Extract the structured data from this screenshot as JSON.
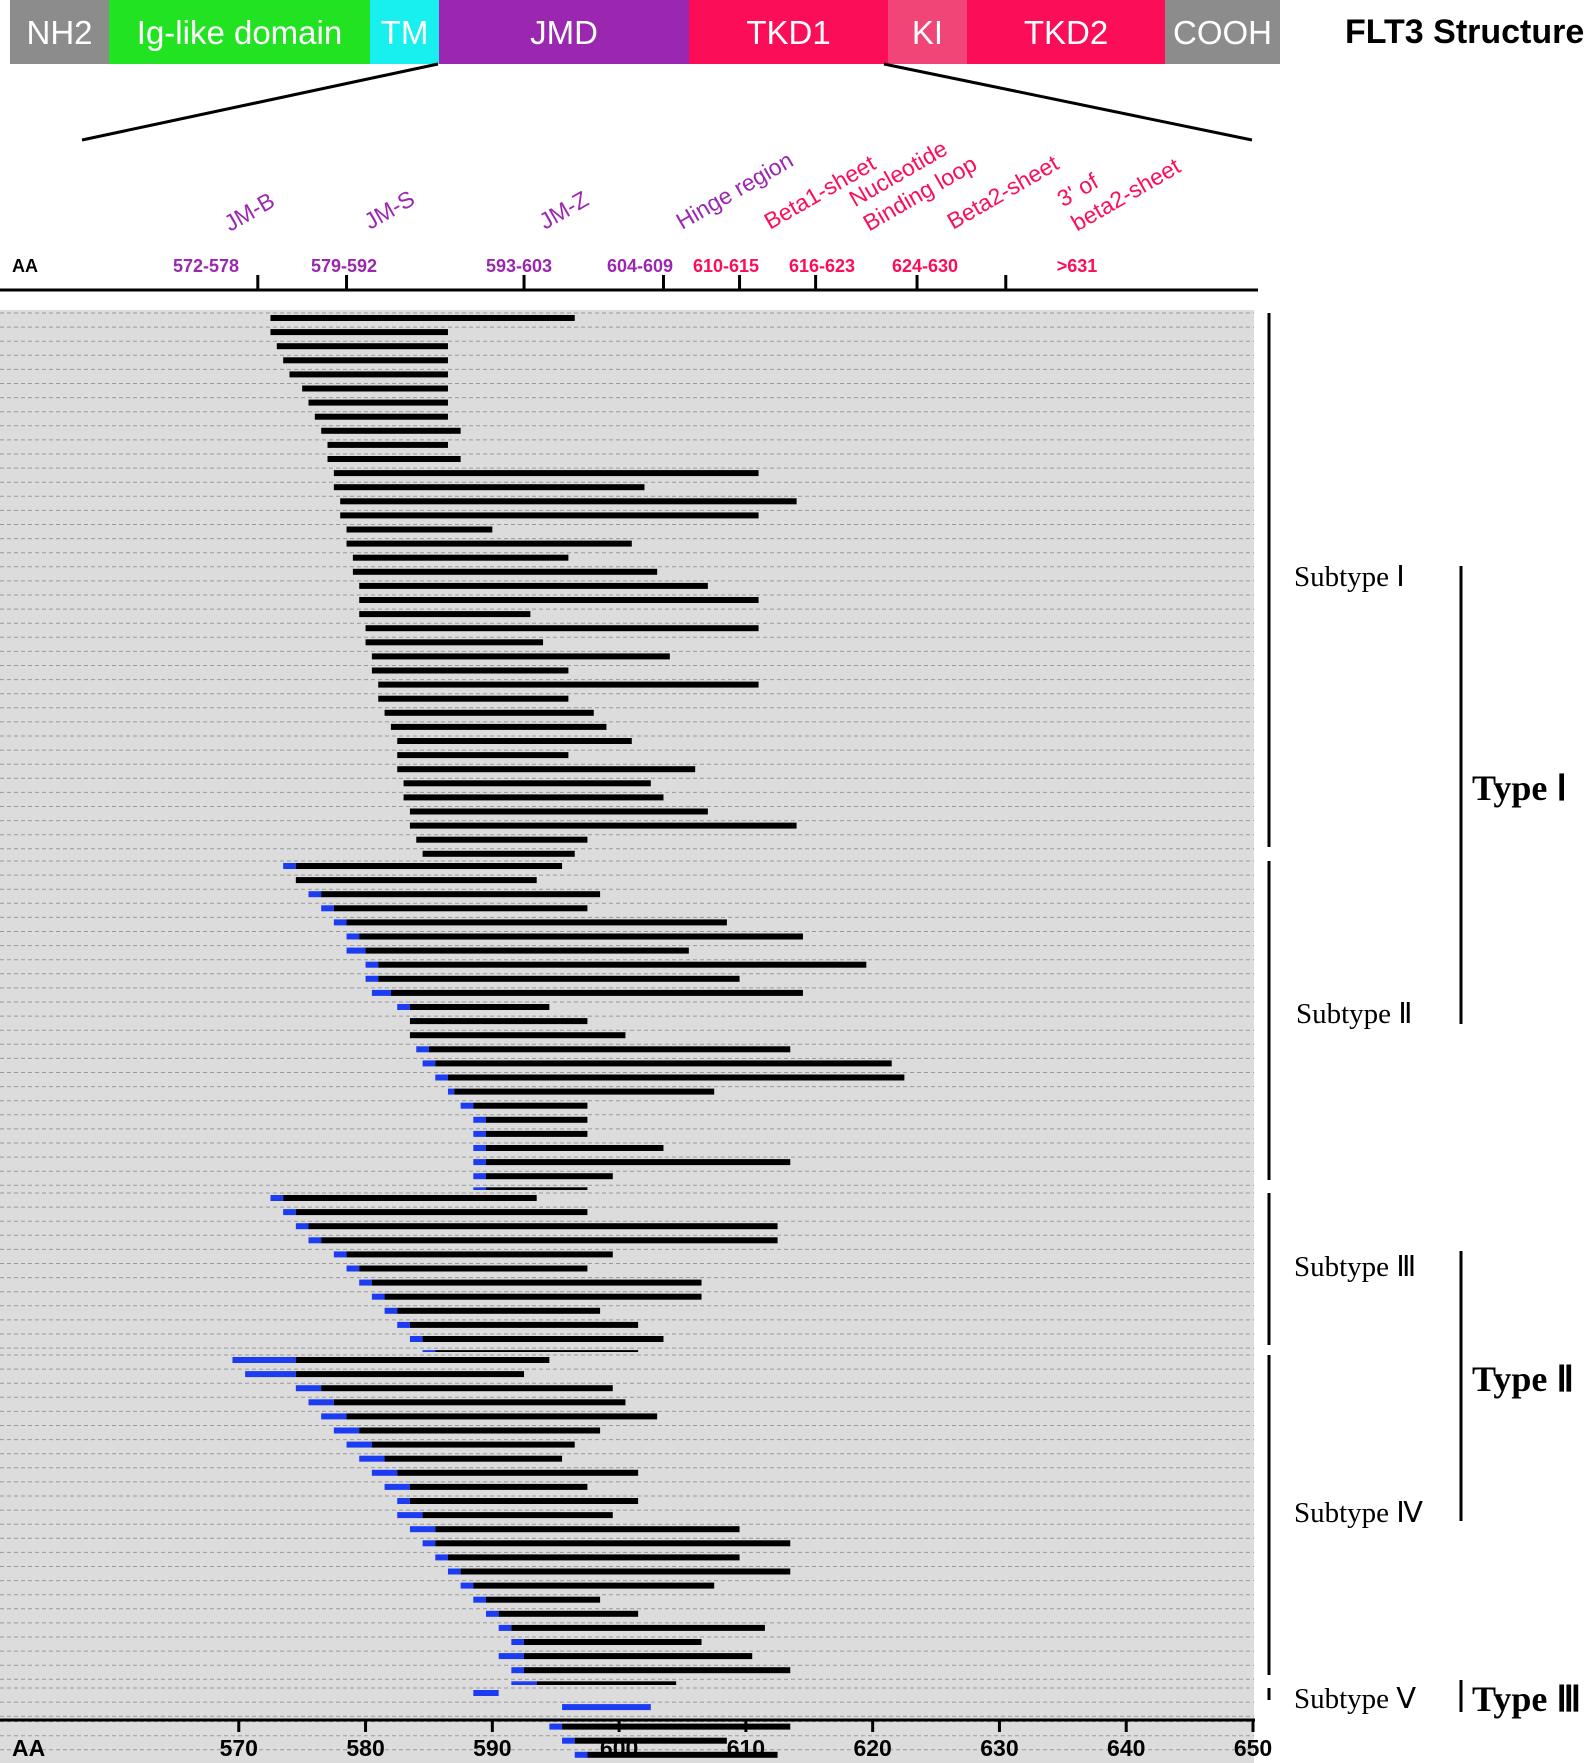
{
  "structure": {
    "title": "FLT3 Structure",
    "domains": [
      {
        "label": "NH2",
        "color": "#8c8c8c"
      },
      {
        "label": "Ig-like domain",
        "color": "#22e322"
      },
      {
        "label": "TM",
        "color": "#18f0f0"
      },
      {
        "label": "JMD",
        "color": "#9b27b0"
      },
      {
        "label": "TKD1",
        "color": "#fc0d58"
      },
      {
        "label": "KI",
        "color": "#f04576"
      },
      {
        "label": "TKD2",
        "color": "#fc0d58"
      },
      {
        "label": "COOH",
        "color": "#8c8c8c"
      }
    ]
  },
  "regions": {
    "axis_label": "AA",
    "items": [
      {
        "name": "JM-B",
        "range": "572-578",
        "color": "#9b27b0"
      },
      {
        "name": "JM-S",
        "range": "579-592",
        "color": "#9b27b0"
      },
      {
        "name": "JM-Z",
        "range": "593-603",
        "color": "#9b27b0"
      },
      {
        "name": "Hinge region",
        "range": "604-609",
        "color": "#9b27b0"
      },
      {
        "name": "Beta1-sheet",
        "range": "610-615",
        "color": "#fc0d58"
      },
      {
        "name": "Nucleotide Binding loop",
        "range": "616-623",
        "color": "#fc0d58"
      },
      {
        "name": "Beta2-sheet",
        "range": "624-630",
        "color": "#fc0d58"
      },
      {
        "name": "3' of beta2-sheet",
        "range": ">631",
        "color": "#fc0d58"
      }
    ],
    "boundaries_aa": [
      571.5,
      578.5,
      592.5,
      603.5,
      609.5,
      615.5,
      623.5,
      630.5
    ]
  },
  "groups": [
    {
      "label": "Subtype Ⅰ"
    },
    {
      "label": "Subtype Ⅱ"
    },
    {
      "label": "Subtype Ⅲ"
    },
    {
      "label": "Subtype Ⅳ"
    },
    {
      "label": "Subtype Ⅴ"
    }
  ],
  "types": [
    {
      "label": "Type Ⅰ"
    },
    {
      "label": "Type Ⅱ"
    },
    {
      "label": "Type Ⅲ"
    }
  ],
  "colors": {
    "insertion": "#000000",
    "partial": "#1c3cf2",
    "sequence_background": "#dcdcdc"
  },
  "chart_data": {
    "type": "bar",
    "orientation": "horizontal-range",
    "xlabel": "AA",
    "xlim": [
      560,
      650
    ],
    "xticks": [
      570,
      580,
      590,
      600,
      610,
      620,
      630,
      640,
      650
    ],
    "series": [
      {
        "name": "Subtype Ⅰ",
        "bars": [
          [
            572.5,
            596.5
          ],
          [
            572.5,
            586.5
          ],
          [
            573,
            586.5
          ],
          [
            573.5,
            586.5
          ],
          [
            574,
            586.5
          ],
          [
            575,
            586.5
          ],
          [
            575.5,
            586.5
          ],
          [
            576,
            586.5
          ],
          [
            576.5,
            587.5
          ],
          [
            577,
            586.5
          ],
          [
            577,
            587.5
          ],
          [
            577.5,
            611
          ],
          [
            577.5,
            602
          ],
          [
            578,
            614
          ],
          [
            578,
            611
          ],
          [
            578.5,
            590
          ],
          [
            578.5,
            601
          ],
          [
            579,
            596
          ],
          [
            579,
            603
          ],
          [
            579.5,
            607
          ],
          [
            579.5,
            611
          ],
          [
            579.5,
            593
          ],
          [
            580,
            611
          ],
          [
            580,
            594
          ],
          [
            580.5,
            604
          ],
          [
            580.5,
            596
          ],
          [
            581,
            611
          ],
          [
            581,
            596
          ],
          [
            581.5,
            598
          ],
          [
            582,
            599
          ],
          [
            582.5,
            601
          ],
          [
            582.5,
            596
          ],
          [
            582.5,
            606
          ],
          [
            583,
            602.5
          ],
          [
            583,
            603.5
          ],
          [
            583.5,
            607
          ],
          [
            583.5,
            614
          ],
          [
            584,
            597.5
          ],
          [
            584.5,
            596.5
          ],
          [
            585,
            598.5
          ],
          [
            585.5,
            607
          ],
          [
            585.5,
            596
          ],
          [
            586,
            611
          ],
          [
            586,
            595.5
          ],
          [
            586.5,
            601.5
          ],
          [
            586.5,
            600
          ],
          [
            586.5,
            602
          ],
          [
            587,
            599.5
          ],
          [
            587,
            609.5
          ],
          [
            588.5,
            612
          ],
          [
            589.5,
            610
          ],
          [
            589.5,
            609
          ],
          [
            590.5,
            613
          ],
          [
            590.5,
            612.5
          ],
          [
            591,
            609.5
          ],
          [
            592,
            598
          ],
          [
            592,
            613
          ],
          [
            592.5,
            601.5
          ],
          [
            592.5,
            603.5
          ],
          [
            592.5,
            607.5
          ],
          [
            592.5,
            601.5
          ],
          [
            592.5,
            613
          ],
          [
            593,
            604
          ],
          [
            593,
            613
          ],
          [
            593.5,
            600.5
          ],
          [
            593.5,
            602.5
          ],
          [
            593.5,
            603.5
          ],
          [
            594,
            599.5
          ],
          [
            594,
            614
          ],
          [
            594.5,
            601.5
          ],
          [
            594.5,
            611
          ],
          [
            594.5,
            601.5
          ],
          [
            595,
            601.5
          ],
          [
            595,
            614
          ],
          [
            595,
            606.5
          ],
          [
            595,
            609
          ],
          [
            595.5,
            614
          ],
          [
            595.5,
            612.5
          ],
          [
            595.5,
            613
          ],
          [
            595.5,
            607
          ],
          [
            596,
            599.5
          ],
          [
            596,
            598.5
          ],
          [
            596,
            605
          ],
          [
            596.5,
            601.5
          ],
          [
            596.5,
            608.5
          ],
          [
            596.5,
            614
          ],
          [
            597,
            602
          ],
          [
            597,
            626.5
          ],
          [
            597.5,
            601.5
          ],
          [
            597.5,
            603
          ],
          [
            598,
            605.5
          ],
          [
            598.5,
            606.5
          ],
          [
            598.5,
            605
          ],
          [
            599,
            606
          ],
          [
            599.5,
            605.5
          ],
          [
            600,
            613.5
          ],
          [
            601,
            613.5
          ],
          [
            602,
            613.5
          ],
          [
            603.5,
            613.5
          ]
        ]
      },
      {
        "name": "Subtype Ⅱ",
        "bars": [
          [
            573.5,
            595.5,
            574.5
          ],
          [
            574.5,
            593.5
          ],
          [
            575.5,
            598.5,
            576.5
          ],
          [
            576.5,
            597.5,
            577.5
          ],
          [
            577.5,
            608.5,
            578.5
          ],
          [
            578.5,
            614.5,
            579.5
          ],
          [
            578.5,
            605.5,
            580
          ],
          [
            580,
            619.5,
            581
          ],
          [
            580,
            609.5,
            581
          ],
          [
            580.5,
            614.5,
            582
          ],
          [
            582.5,
            594.5,
            583.5
          ],
          [
            583.5,
            597.5,
            583.5
          ],
          [
            583.5,
            600.5,
            583.5
          ],
          [
            584,
            613.5,
            585
          ],
          [
            584.5,
            621.5,
            585.5
          ],
          [
            585.5,
            622.5,
            586.5
          ],
          [
            586.5,
            607.5,
            587
          ],
          [
            587.5,
            597.5,
            588.5
          ],
          [
            588.5,
            597.5,
            589.5
          ],
          [
            588.5,
            597.5,
            589.5
          ],
          [
            588.5,
            603.5,
            589.5
          ],
          [
            588.5,
            613.5,
            589.5
          ],
          [
            588.5,
            599.5,
            589.5
          ],
          [
            588.5,
            597.5,
            589.5
          ],
          [
            585.5,
            614.5,
            589.5
          ],
          [
            589.5,
            601.5,
            590.5
          ],
          [
            589.5,
            597.5,
            590.5
          ],
          [
            590.5,
            602.5,
            591.5
          ],
          [
            590.5,
            607.5,
            591.5
          ],
          [
            591.5,
            597.5,
            592.5
          ],
          [
            592.5,
            627.5,
            593.5
          ],
          [
            593.5,
            603.5,
            594.5
          ],
          [
            593.5,
            606.5,
            594.5
          ],
          [
            593.5,
            605.5,
            594.5
          ],
          [
            593.5,
            606.5,
            594.5
          ],
          [
            590.5,
            642.5,
            594.5
          ],
          [
            594.5,
            614.5,
            595.5
          ],
          [
            594.5,
            608.5,
            595.5
          ],
          [
            595.5,
            605.5,
            596
          ],
          [
            596,
            613.5,
            597
          ],
          [
            589.5,
            614.5,
            597.5
          ],
          [
            598.5,
            613.5,
            599.5
          ]
        ]
      },
      {
        "name": "Subtype Ⅲ",
        "bars": [
          [
            572.5,
            593.5,
            573.5
          ],
          [
            573.5,
            597.5,
            574.5
          ],
          [
            574.5,
            612.5,
            575.5
          ],
          [
            575.5,
            612.5,
            576.5
          ],
          [
            577.5,
            599.5,
            578.5
          ],
          [
            578.5,
            597.5,
            579.5
          ],
          [
            579.5,
            606.5,
            580.5
          ],
          [
            580.5,
            606.5,
            581.5
          ],
          [
            581.5,
            598.5,
            582.5
          ],
          [
            582.5,
            601.5,
            583.5
          ],
          [
            583.5,
            603.5,
            584.5
          ],
          [
            584.5,
            601.5,
            585.5
          ],
          [
            585.5,
            601.5,
            586.5
          ],
          [
            587.5,
            610.5,
            588.5
          ],
          [
            588.5,
            605.5,
            589.5
          ],
          [
            589.5,
            611.5,
            590.5
          ],
          [
            590.5,
            601.5,
            591.5
          ],
          [
            591.5,
            610.5,
            592.5
          ],
          [
            592.5,
            611,
            593.5
          ],
          [
            593.5,
            606,
            594.5
          ],
          [
            594.5,
            621.5,
            595.5
          ],
          [
            595.5,
            626.5,
            596.5
          ],
          [
            596.5,
            609.5,
            597.5
          ],
          [
            597.5,
            611.5,
            598.5
          ]
        ]
      },
      {
        "name": "Subtype Ⅳ",
        "bars": [
          [
            569.5,
            594.5,
            574.5
          ],
          [
            570.5,
            592.5,
            574.5
          ],
          [
            574.5,
            599.5,
            576.5
          ],
          [
            575.5,
            600.5,
            577.5
          ],
          [
            576.5,
            603,
            578.5
          ],
          [
            577.5,
            598.5,
            579.5
          ],
          [
            578.5,
            596.5,
            580.5
          ],
          [
            579.5,
            595.5,
            581.5
          ],
          [
            580.5,
            601.5,
            582.5
          ],
          [
            581.5,
            597.5,
            583.5
          ],
          [
            582.5,
            601.5,
            583.5
          ],
          [
            582.5,
            599.5,
            584.5
          ],
          [
            583.5,
            609.5,
            585.5
          ],
          [
            584.5,
            613.5,
            585.5
          ],
          [
            585.5,
            609.5,
            586.5
          ],
          [
            586.5,
            613.5,
            587.5
          ],
          [
            587.5,
            607.5,
            588.5
          ],
          [
            588.5,
            598.5,
            589.5
          ],
          [
            589.5,
            601.5,
            590.5
          ],
          [
            590.5,
            611.5,
            591.5
          ],
          [
            591.5,
            606.5,
            592.5
          ],
          [
            590.5,
            610.5,
            592.5
          ],
          [
            591.5,
            613.5,
            592.5
          ],
          [
            591.5,
            604.5,
            593.5
          ],
          [
            592.5,
            604.5,
            593.5
          ],
          [
            593.5,
            600.5,
            594.5
          ],
          [
            594.5,
            613.5,
            595.5
          ],
          [
            595.5,
            608.5,
            596.5
          ],
          [
            596.5,
            612.5,
            597.5
          ],
          [
            597.5,
            607.5,
            598.5
          ]
        ]
      },
      {
        "name": "Subtype Ⅴ",
        "bars": [
          [
            588.5,
            590.5,
            590.5
          ],
          [
            595.5,
            602.5,
            602.5
          ]
        ]
      }
    ]
  }
}
